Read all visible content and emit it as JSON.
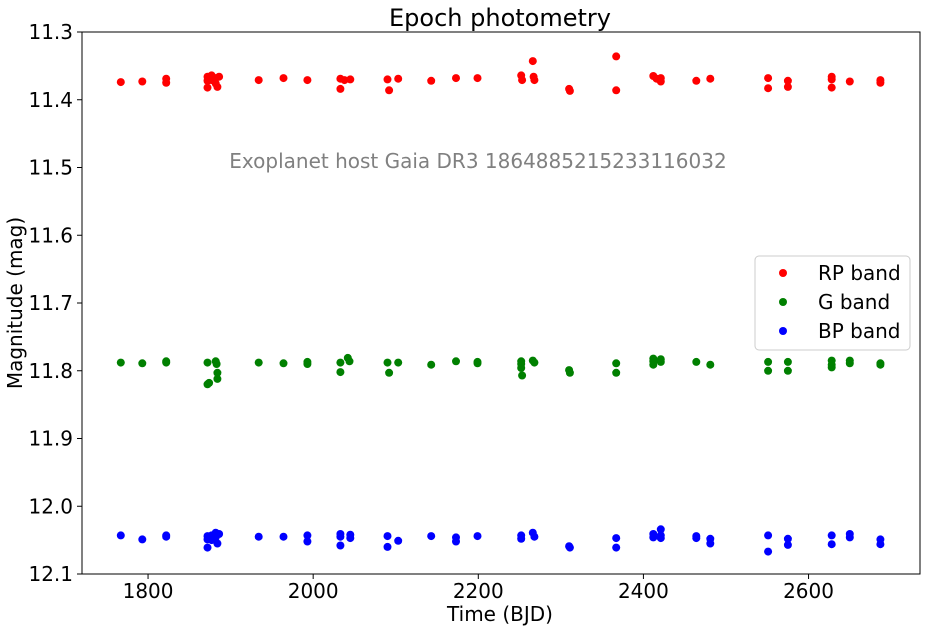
{
  "chart_data": {
    "type": "scatter",
    "title": "Epoch photometry",
    "xlabel": "Time (BJD)",
    "ylabel": "Magnitude (mag)",
    "xlim": [
      1720,
      2735
    ],
    "ylim": [
      12.1,
      11.3
    ],
    "y_inverted": true,
    "x_ticks": [
      1800,
      2000,
      2200,
      2400,
      2600
    ],
    "y_ticks": [
      11.3,
      11.4,
      11.5,
      11.6,
      11.7,
      11.8,
      11.9,
      12.0,
      12.1
    ],
    "x_tick_labels": [
      "1800",
      "2000",
      "2200",
      "2400",
      "2600"
    ],
    "y_tick_labels": [
      "11.3",
      "11.4",
      "11.5",
      "11.6",
      "11.7",
      "11.8",
      "11.9",
      "12.0",
      "12.1"
    ],
    "annotation": "Exoplanet host Gaia DR3 1864885215233116032",
    "legend_position": "center-right",
    "grid": false,
    "series": [
      {
        "name": "RP band",
        "color": "#ff0000",
        "points": [
          [
            1767,
            11.374
          ],
          [
            1793,
            11.373
          ],
          [
            1822,
            11.369
          ],
          [
            1822,
            11.375
          ],
          [
            1872,
            11.366
          ],
          [
            1872,
            11.372
          ],
          [
            1872,
            11.382
          ],
          [
            1877,
            11.364
          ],
          [
            1877,
            11.371
          ],
          [
            1882,
            11.368
          ],
          [
            1882,
            11.376
          ],
          [
            1884,
            11.381
          ],
          [
            1886,
            11.366
          ],
          [
            1934,
            11.371
          ],
          [
            1964,
            11.368
          ],
          [
            1993,
            11.371
          ],
          [
            2033,
            11.369
          ],
          [
            2033,
            11.384
          ],
          [
            2038,
            11.371
          ],
          [
            2045,
            11.37
          ],
          [
            2090,
            11.37
          ],
          [
            2092,
            11.386
          ],
          [
            2103,
            11.369
          ],
          [
            2143,
            11.372
          ],
          [
            2173,
            11.368
          ],
          [
            2199,
            11.368
          ],
          [
            2252,
            11.364
          ],
          [
            2253,
            11.371
          ],
          [
            2266,
            11.343
          ],
          [
            2267,
            11.366
          ],
          [
            2268,
            11.371
          ],
          [
            2310,
            11.384
          ],
          [
            2311,
            11.387
          ],
          [
            2367,
            11.336
          ],
          [
            2367,
            11.386
          ],
          [
            2412,
            11.365
          ],
          [
            2416,
            11.369
          ],
          [
            2421,
            11.368
          ],
          [
            2421,
            11.373
          ],
          [
            2464,
            11.372
          ],
          [
            2481,
            11.369
          ],
          [
            2551,
            11.368
          ],
          [
            2551,
            11.383
          ],
          [
            2575,
            11.372
          ],
          [
            2575,
            11.381
          ],
          [
            2628,
            11.366
          ],
          [
            2628,
            11.37
          ],
          [
            2628,
            11.382
          ],
          [
            2650,
            11.373
          ],
          [
            2687,
            11.371
          ],
          [
            2687,
            11.375
          ]
        ]
      },
      {
        "name": "G band",
        "color": "#008000",
        "points": [
          [
            1767,
            11.788
          ],
          [
            1793,
            11.789
          ],
          [
            1822,
            11.786
          ],
          [
            1822,
            11.788
          ],
          [
            1872,
            11.788
          ],
          [
            1872,
            11.82
          ],
          [
            1874,
            11.818
          ],
          [
            1882,
            11.786
          ],
          [
            1883,
            11.79
          ],
          [
            1884,
            11.803
          ],
          [
            1884,
            11.812
          ],
          [
            1934,
            11.788
          ],
          [
            1964,
            11.789
          ],
          [
            1993,
            11.787
          ],
          [
            1993,
            11.79
          ],
          [
            2033,
            11.788
          ],
          [
            2033,
            11.802
          ],
          [
            2042,
            11.781
          ],
          [
            2044,
            11.786
          ],
          [
            2090,
            11.788
          ],
          [
            2092,
            11.803
          ],
          [
            2103,
            11.788
          ],
          [
            2143,
            11.791
          ],
          [
            2173,
            11.786
          ],
          [
            2199,
            11.787
          ],
          [
            2199,
            11.789
          ],
          [
            2252,
            11.786
          ],
          [
            2252,
            11.79
          ],
          [
            2252,
            11.796
          ],
          [
            2253,
            11.807
          ],
          [
            2266,
            11.785
          ],
          [
            2268,
            11.788
          ],
          [
            2310,
            11.799
          ],
          [
            2311,
            11.803
          ],
          [
            2367,
            11.789
          ],
          [
            2367,
            11.803
          ],
          [
            2412,
            11.782
          ],
          [
            2412,
            11.786
          ],
          [
            2412,
            11.791
          ],
          [
            2421,
            11.783
          ],
          [
            2421,
            11.787
          ],
          [
            2464,
            11.787
          ],
          [
            2481,
            11.791
          ],
          [
            2551,
            11.787
          ],
          [
            2551,
            11.8
          ],
          [
            2575,
            11.787
          ],
          [
            2575,
            11.8
          ],
          [
            2628,
            11.785
          ],
          [
            2628,
            11.791
          ],
          [
            2628,
            11.795
          ],
          [
            2650,
            11.785
          ],
          [
            2650,
            11.789
          ],
          [
            2687,
            11.789
          ],
          [
            2687,
            11.791
          ]
        ]
      },
      {
        "name": "BP band",
        "color": "#0000ff",
        "points": [
          [
            1767,
            12.043
          ],
          [
            1793,
            12.049
          ],
          [
            1822,
            12.043
          ],
          [
            1822,
            12.045
          ],
          [
            1872,
            12.044
          ],
          [
            1872,
            12.049
          ],
          [
            1872,
            12.061
          ],
          [
            1877,
            12.043
          ],
          [
            1877,
            12.05
          ],
          [
            1882,
            12.039
          ],
          [
            1882,
            12.046
          ],
          [
            1884,
            12.055
          ],
          [
            1886,
            12.041
          ],
          [
            1934,
            12.045
          ],
          [
            1964,
            12.045
          ],
          [
            1993,
            12.043
          ],
          [
            1993,
            12.052
          ],
          [
            2033,
            12.041
          ],
          [
            2033,
            12.045
          ],
          [
            2033,
            12.058
          ],
          [
            2045,
            12.042
          ],
          [
            2045,
            12.047
          ],
          [
            2090,
            12.044
          ],
          [
            2090,
            12.06
          ],
          [
            2103,
            12.051
          ],
          [
            2143,
            12.044
          ],
          [
            2173,
            12.046
          ],
          [
            2173,
            12.052
          ],
          [
            2199,
            12.044
          ],
          [
            2252,
            12.043
          ],
          [
            2252,
            12.048
          ],
          [
            2266,
            12.039
          ],
          [
            2268,
            12.045
          ],
          [
            2310,
            12.059
          ],
          [
            2311,
            12.061
          ],
          [
            2367,
            12.047
          ],
          [
            2367,
            12.061
          ],
          [
            2412,
            12.041
          ],
          [
            2412,
            12.046
          ],
          [
            2421,
            12.034
          ],
          [
            2421,
            12.043
          ],
          [
            2421,
            12.047
          ],
          [
            2464,
            12.044
          ],
          [
            2464,
            12.047
          ],
          [
            2481,
            12.048
          ],
          [
            2481,
            12.055
          ],
          [
            2551,
            12.043
          ],
          [
            2551,
            12.067
          ],
          [
            2575,
            12.048
          ],
          [
            2575,
            12.057
          ],
          [
            2628,
            12.043
          ],
          [
            2628,
            12.056
          ],
          [
            2650,
            12.041
          ],
          [
            2650,
            12.046
          ],
          [
            2687,
            12.049
          ],
          [
            2687,
            12.056
          ]
        ]
      }
    ]
  }
}
